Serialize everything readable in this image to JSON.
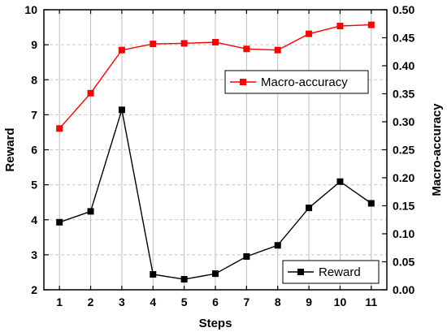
{
  "chart_data": {
    "type": "line",
    "x": [
      1,
      2,
      3,
      4,
      5,
      6,
      7,
      8,
      9,
      10,
      11
    ],
    "xlabel": "Steps",
    "xlim": [
      0.5,
      11.5
    ],
    "y_left": {
      "label": "Reward",
      "lim": [
        2,
        10
      ],
      "ticks": [
        "2",
        "3",
        "4",
        "5",
        "6",
        "7",
        "8",
        "9",
        "10"
      ]
    },
    "y_right": {
      "label": "Macro-accuracy",
      "lim": [
        0,
        0.5
      ],
      "ticks": [
        "0.00",
        "0.05",
        "0.10",
        "0.15",
        "0.20",
        "0.25",
        "0.30",
        "0.35",
        "0.40",
        "0.45",
        "0.50"
      ]
    },
    "x_ticks": [
      "1",
      "2",
      "3",
      "4",
      "5",
      "6",
      "7",
      "8",
      "9",
      "10",
      "11"
    ],
    "grid": "on",
    "series": [
      {
        "name": "Macro-accuracy",
        "axis": "right",
        "color": "#ff0000",
        "marker": "square",
        "values": [
          0.288,
          0.351,
          0.428,
          0.439,
          0.44,
          0.442,
          0.43,
          0.428,
          0.457,
          0.471,
          0.473
        ]
      },
      {
        "name": "Reward",
        "axis": "left",
        "color": "#000000",
        "marker": "square",
        "values": [
          3.93,
          4.24,
          7.14,
          2.44,
          2.3,
          2.46,
          2.95,
          3.27,
          4.34,
          5.09,
          4.47
        ]
      }
    ],
    "legends": [
      {
        "series": "Macro-accuracy",
        "placement": "upper-right"
      },
      {
        "series": "Reward",
        "placement": "lower-right"
      }
    ]
  }
}
